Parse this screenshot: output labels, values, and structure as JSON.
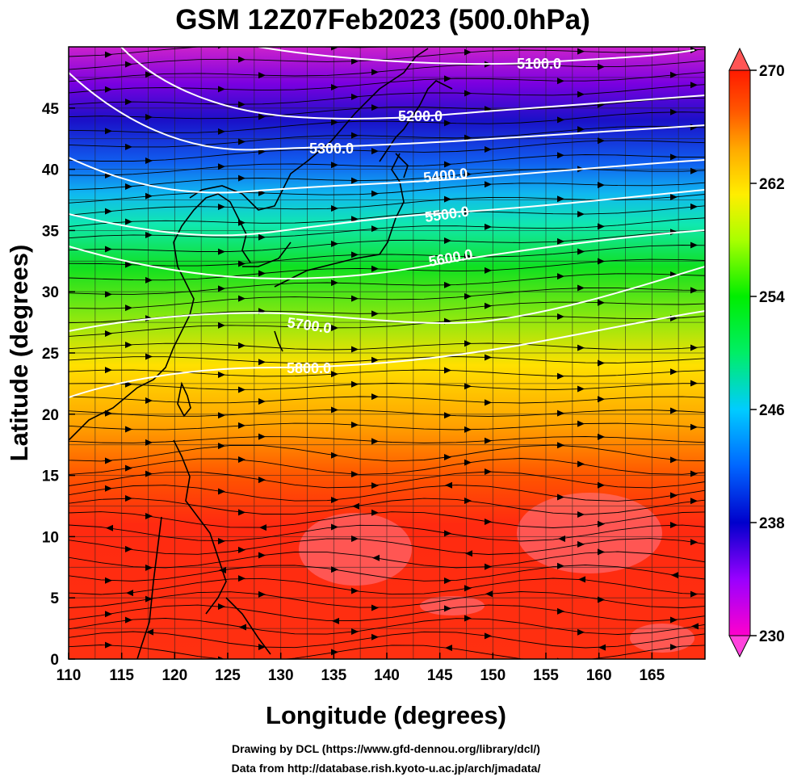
{
  "title": "GSM 12Z07Feb2023 (500.0hPa)",
  "x_axis": {
    "label": "Longitude (degrees)",
    "range": [
      110,
      170
    ],
    "ticks": [
      "110",
      "115",
      "120",
      "125",
      "130",
      "135",
      "140",
      "145",
      "150",
      "155",
      "160",
      "165"
    ]
  },
  "y_axis": {
    "label": "Latitude  (degrees)",
    "range": [
      0,
      50
    ],
    "ticks": [
      "0",
      "5",
      "10",
      "15",
      "20",
      "25",
      "30",
      "35",
      "40",
      "45"
    ]
  },
  "colorbar": {
    "range": [
      230,
      270
    ],
    "ticks": [
      "230",
      "238",
      "246",
      "254",
      "262",
      "270"
    ],
    "colors": [
      "#ff00cc",
      "#9900ff",
      "#0000cc",
      "#0066ff",
      "#00ccff",
      "#00ff99",
      "#00ee00",
      "#aaff00",
      "#ffee00",
      "#ffaa00",
      "#ff5500",
      "#ff1a00"
    ]
  },
  "contours": {
    "labels": [
      "5100.0",
      "5200.0",
      "5300.0",
      "5400.0",
      "5500.0",
      "5600.0",
      "5700.0",
      "5800.0"
    ]
  },
  "credits": {
    "line1": "Drawing by DCL (https://www.gfd-dennou.org/library/dcl/)",
    "line2": "Data from http://database.rish.kyoto-u.ac.jp/arch/jmadata/"
  }
}
